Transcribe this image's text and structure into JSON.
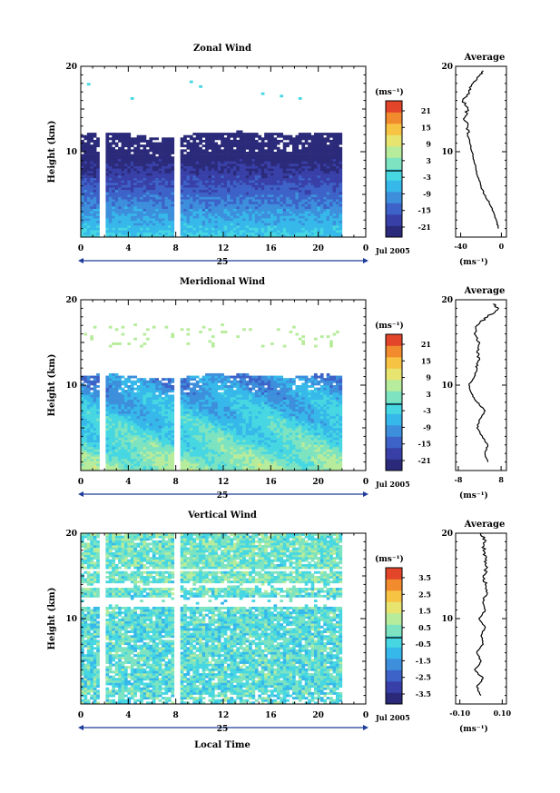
{
  "figure": {
    "xlabel": "Local Time",
    "colors": {
      "cbar": [
        "#2b2a7a",
        "#3840a8",
        "#3d62c8",
        "#3d8fdc",
        "#36b8ea",
        "#46d7e2",
        "#7de3c0",
        "#b6ec9c",
        "#e7e570",
        "#f7c343",
        "#f28a2e",
        "#e2452a"
      ],
      "divider": "#000000",
      "missing": "#ffffff"
    }
  },
  "chart_data": [
    {
      "type": "heatmap",
      "title": "Zonal Wind",
      "ylabel": "Height (km)",
      "ylim": [
        0,
        20
      ],
      "yticks": [
        "10",
        "20"
      ],
      "xlim": [
        0,
        24
      ],
      "xticks": [
        "0",
        "4",
        "8",
        "12",
        "16",
        "20",
        "0"
      ],
      "date_day": "25",
      "date_month": "Jul 2005",
      "colorbar": {
        "unit": "(ms⁻¹)",
        "ticks": [
          "21",
          "15",
          "9",
          "3",
          "-3",
          "-9",
          "-15",
          "-21"
        ],
        "range": [
          -24,
          24
        ]
      },
      "avg": {
        "title": "Average",
        "xlim": [
          -45,
          5
        ],
        "xticks": [
          "-40",
          "0"
        ],
        "xunit": "(ms⁻¹)",
        "profile": [
          [
            1,
            -3
          ],
          [
            2,
            -5
          ],
          [
            3,
            -8
          ],
          [
            4,
            -12
          ],
          [
            5,
            -17
          ],
          [
            6,
            -20
          ],
          [
            7,
            -23
          ],
          [
            8,
            -25
          ],
          [
            9,
            -27
          ],
          [
            10,
            -29
          ],
          [
            11,
            -31
          ],
          [
            12,
            -33
          ],
          [
            13,
            -33
          ],
          [
            14,
            -36
          ],
          [
            15,
            -33
          ],
          [
            16,
            -38
          ],
          [
            17,
            -32
          ],
          [
            18,
            -28
          ],
          [
            19,
            -21
          ],
          [
            19.5,
            -18
          ]
        ]
      },
      "missing_cols": [
        1.8,
        8.2
      ],
      "data_top": 12,
      "mode": "zonal"
    },
    {
      "type": "heatmap",
      "title": "Meridional Wind",
      "ylabel": "Height (km)",
      "ylim": [
        0,
        20
      ],
      "yticks": [
        "10",
        "20"
      ],
      "xlim": [
        0,
        24
      ],
      "xticks": [
        "0",
        "4",
        "8",
        "12",
        "16",
        "20",
        "0"
      ],
      "date_day": "25",
      "date_month": "Jul 2005",
      "colorbar": {
        "unit": "(ms⁻¹)",
        "ticks": [
          "21",
          "15",
          "9",
          "3",
          "-3",
          "-9",
          "-15",
          "-21"
        ],
        "range": [
          -24,
          24
        ]
      },
      "avg": {
        "title": "Average",
        "xlim": [
          -9,
          10
        ],
        "xticks": [
          "-8",
          "8"
        ],
        "xunit": "(ms⁻¹)",
        "profile": [
          [
            1,
            3
          ],
          [
            2,
            2
          ],
          [
            3,
            3
          ],
          [
            4,
            1
          ],
          [
            5,
            -1
          ],
          [
            6,
            0
          ],
          [
            7,
            2
          ],
          [
            8,
            -1
          ],
          [
            9,
            -3
          ],
          [
            10,
            -4
          ],
          [
            11,
            -2
          ],
          [
            12,
            -1
          ],
          [
            13,
            0
          ],
          [
            14,
            -1
          ],
          [
            15,
            0
          ],
          [
            16,
            -2
          ],
          [
            17,
            -1
          ],
          [
            18,
            3
          ],
          [
            19,
            7
          ],
          [
            19.5,
            5
          ]
        ]
      },
      "missing_cols": [
        1.8,
        8.2
      ],
      "data_top": 11,
      "mode": "meridional"
    },
    {
      "type": "heatmap",
      "title": "Vertical Wind",
      "ylabel": "Height (km)",
      "ylim": [
        0,
        20
      ],
      "yticks": [
        "10",
        "20"
      ],
      "xlim": [
        0,
        24
      ],
      "xticks": [
        "0",
        "4",
        "8",
        "12",
        "16",
        "20",
        "0"
      ],
      "date_day": "25",
      "date_month": "Jul 2005",
      "colorbar": {
        "unit": "(ms⁻¹)",
        "ticks": [
          "3.5",
          "2.5",
          "1.5",
          "0.5",
          "-0.5",
          "-1.5",
          "-2.5",
          "-3.5"
        ],
        "range": [
          -4,
          4
        ]
      },
      "avg": {
        "title": "Average",
        "xlim": [
          -0.12,
          0.12
        ],
        "xticks": [
          "-0.10",
          "0.10"
        ],
        "xunit": "(ms⁻¹)",
        "profile": [
          [
            1,
            0
          ],
          [
            2,
            -0.02
          ],
          [
            3,
            0.01
          ],
          [
            4,
            -0.03
          ],
          [
            5,
            0
          ],
          [
            6,
            -0.02
          ],
          [
            7,
            0.01
          ],
          [
            8,
            0
          ],
          [
            9,
            0.02
          ],
          [
            10,
            -0.01
          ],
          [
            11,
            0.02
          ],
          [
            12,
            0.01
          ],
          [
            13,
            0.03
          ],
          [
            14,
            0.02
          ],
          [
            15,
            0.01
          ],
          [
            16,
            0.03
          ],
          [
            17,
            0.02
          ],
          [
            18,
            0.01
          ],
          [
            19,
            0.02
          ],
          [
            20,
            0
          ]
        ]
      },
      "missing_cols": [
        1.8,
        8.2
      ],
      "data_top": 19,
      "mode": "vertical"
    }
  ]
}
